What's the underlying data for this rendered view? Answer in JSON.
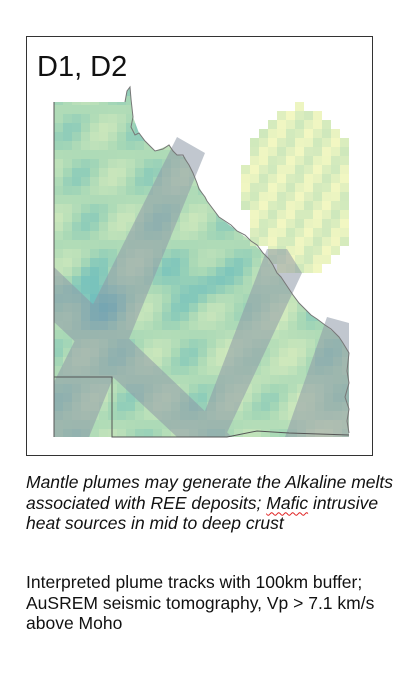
{
  "panel": {
    "label": "D1, D2"
  },
  "caption": {
    "part1": "Mantle plumes may generate the Alkaline melts associated with REE deposits; ",
    "squiggle_word": "Mafic",
    "part2": " intrusive heat sources in mid to deep crust"
  },
  "description": {
    "text": "Interpreted plume tracks with 100km buffer; AuSREM seismic tomography, Vp > 7.1 km/s above Moho"
  },
  "colors": {
    "tomography_high": "#3fa9c3",
    "tomography_mid": "#a8d8b6",
    "tomography_low": "#f2f7c2",
    "plume_track": "#8f9aa8",
    "coastline": "#777777"
  },
  "icons": {
    "map": "queensland-outline-map"
  }
}
